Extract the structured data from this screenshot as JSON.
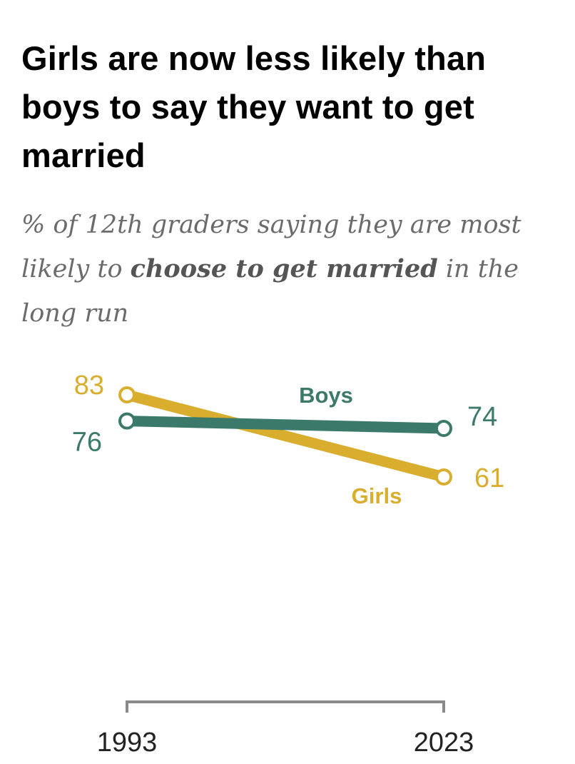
{
  "title": "Girls are now less likely than boys to say they want to get married",
  "subtitle": {
    "part1": "% of 12th graders saying they are most likely to ",
    "bold": "choose to get married",
    "part2": " in the long run"
  },
  "colors": {
    "boys": "#3b7a6a",
    "girls": "#d9ae2f",
    "axis": "#8a8a8a"
  },
  "chart_data": {
    "type": "line",
    "title": "Girls are now less likely than boys to say they want to get married",
    "x": [
      "1993",
      "2023"
    ],
    "series": [
      {
        "name": "Boys",
        "values": [
          76,
          74
        ],
        "value_labels": [
          "76",
          "74"
        ]
      },
      {
        "name": "Girls",
        "values": [
          83,
          61
        ],
        "value_labels": [
          "83",
          "61"
        ]
      }
    ],
    "xlabel": "",
    "ylabel": "",
    "grid": false,
    "legend": "direct labels"
  }
}
